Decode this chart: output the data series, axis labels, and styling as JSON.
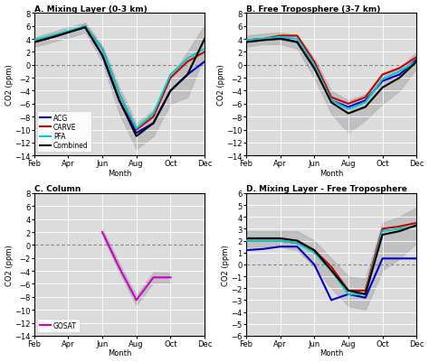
{
  "months": [
    2,
    3,
    4,
    5,
    6,
    7,
    8,
    9,
    10,
    11,
    12
  ],
  "month_labels": [
    "Feb",
    "Apr",
    "Jun",
    "Aug",
    "Oct",
    "Dec"
  ],
  "month_ticks": [
    2,
    4,
    6,
    8,
    10,
    12
  ],
  "A_ACG": [
    3.5,
    4.2,
    5.0,
    5.8,
    1.5,
    -5.5,
    -10.5,
    -9.0,
    -4.0,
    -1.5,
    0.5
  ],
  "A_CARVE": [
    3.5,
    4.2,
    5.0,
    6.0,
    2.5,
    -4.5,
    -10.0,
    -8.0,
    -2.0,
    0.5,
    2.0
  ],
  "A_PFA": [
    3.8,
    4.5,
    5.2,
    6.0,
    2.5,
    -4.5,
    -9.8,
    -7.5,
    -1.5,
    1.0,
    2.5
  ],
  "A_Combined": [
    3.5,
    4.2,
    5.0,
    5.8,
    1.5,
    -5.5,
    -11.0,
    -9.0,
    -4.0,
    -1.5,
    4.0
  ],
  "A_shade_upper": [
    4.2,
    5.0,
    5.8,
    6.5,
    3.0,
    -3.5,
    -9.0,
    -7.0,
    -2.0,
    2.0,
    6.2
  ],
  "A_shade_lower": [
    2.8,
    3.5,
    4.2,
    5.0,
    0.5,
    -7.5,
    -13.0,
    -11.0,
    -6.0,
    -5.0,
    1.5
  ],
  "B_ACG": [
    3.8,
    4.0,
    4.2,
    3.5,
    -0.5,
    -5.5,
    -6.5,
    -5.5,
    -2.5,
    -1.5,
    0.8
  ],
  "B_CARVE": [
    3.8,
    4.0,
    4.5,
    4.5,
    0.5,
    -5.0,
    -6.0,
    -5.0,
    -1.5,
    -0.5,
    1.2
  ],
  "B_PFA": [
    3.8,
    4.0,
    4.3,
    4.0,
    0.0,
    -5.5,
    -6.8,
    -5.8,
    -2.2,
    -1.0,
    0.5
  ],
  "B_Combined": [
    3.5,
    3.8,
    4.0,
    3.5,
    -0.5,
    -5.8,
    -7.5,
    -6.5,
    -3.5,
    -2.0,
    0.5
  ],
  "B_shade_upper": [
    4.5,
    4.8,
    5.0,
    4.5,
    1.0,
    -4.0,
    -5.5,
    -4.5,
    -1.5,
    -0.5,
    2.0
  ],
  "B_shade_lower": [
    2.8,
    3.2,
    3.2,
    2.5,
    -2.0,
    -7.5,
    -10.5,
    -8.5,
    -6.0,
    -4.0,
    -0.5
  ],
  "C_GOSAT": [
    null,
    null,
    null,
    null,
    2.0,
    -3.5,
    -8.5,
    -5.0,
    -5.0,
    null,
    null
  ],
  "C_shade_upper": [
    null,
    null,
    null,
    null,
    2.5,
    -2.8,
    -7.8,
    -4.2,
    -4.3,
    null,
    null
  ],
  "C_shade_lower": [
    null,
    null,
    null,
    null,
    1.5,
    -4.2,
    -9.3,
    -5.8,
    -5.8,
    null,
    null
  ],
  "D_ACG": [
    1.2,
    1.3,
    1.5,
    1.5,
    0.0,
    -3.0,
    -2.5,
    -2.8,
    0.5,
    0.5,
    0.5
  ],
  "D_CARVE": [
    2.0,
    2.0,
    2.0,
    1.8,
    1.2,
    -0.2,
    -2.2,
    -2.2,
    3.0,
    3.2,
    3.5
  ],
  "D_PFA": [
    2.0,
    2.0,
    2.0,
    1.8,
    1.0,
    -0.5,
    -2.5,
    -2.5,
    2.8,
    3.0,
    3.2
  ],
  "D_Combined": [
    2.2,
    2.2,
    2.2,
    2.0,
    1.2,
    -0.5,
    -2.2,
    -2.5,
    2.5,
    2.8,
    3.3
  ],
  "D_shade_upper": [
    2.8,
    2.8,
    2.8,
    2.8,
    2.0,
    0.5,
    -1.0,
    -1.2,
    3.5,
    4.0,
    4.8
  ],
  "D_shade_lower": [
    1.5,
    1.5,
    1.5,
    1.2,
    -0.2,
    -2.0,
    -3.5,
    -3.8,
    -0.5,
    0.5,
    1.8
  ],
  "color_ACG": "#0000cc",
  "color_CARVE": "#cc0000",
  "color_PFA": "#00cccc",
  "color_Combined": "#000000",
  "color_GOSAT": "#cc00cc",
  "color_shade": "#aaaaaa",
  "ylim_abс": [
    -14,
    8
  ],
  "yticks_abc": [
    -14,
    -12,
    -10,
    -8,
    -6,
    -4,
    -2,
    0,
    2,
    4,
    6,
    8
  ],
  "ylim_d": [
    -6,
    6
  ],
  "yticks_d": [
    -6,
    -5,
    -4,
    -3,
    -2,
    -1,
    0,
    1,
    2,
    3,
    4,
    5,
    6
  ],
  "title_A": "A. Mixing Layer (0-3 km)",
  "title_B": "B. Free Troposphere (3-7 km)",
  "title_C": "C. Column",
  "title_D": "D. Mixing Layer - Free Troposphere",
  "ylabel": "CO2 (ppm)",
  "xlabel": "Month",
  "bg_color": "#dcdcdc"
}
